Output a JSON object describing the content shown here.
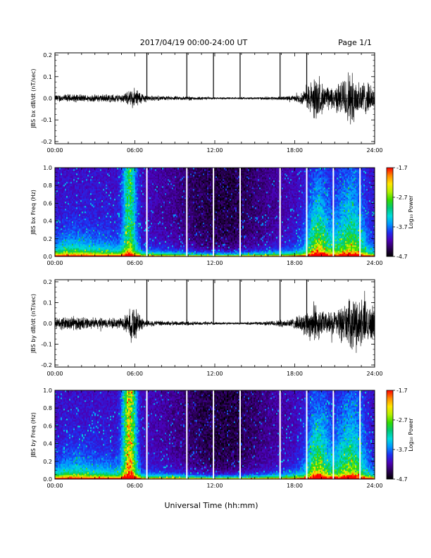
{
  "header": {
    "title": "2017/04/19  00:00-24:00 UT",
    "page": "Page 1/1"
  },
  "footer": {
    "xlabel": "Universal Time (hh:mm)"
  },
  "colors": {
    "trace": "#000000",
    "gap": "#ffffff",
    "colormap": [
      "#000000",
      "#2a0055",
      "#4b00b4",
      "#1e2ef0",
      "#0096ff",
      "#00dcdc",
      "#00c878",
      "#32dc00",
      "#b4f000",
      "#ffe600",
      "#ff8c00",
      "#ff0000"
    ]
  },
  "chart_data": [
    {
      "type": "line",
      "ylabel": "JBS bx dB/dt (nT/sec)",
      "x_ticks": [
        "00:00",
        "06:00",
        "12:00",
        "18:00",
        "24:00"
      ],
      "xlim_hours": [
        0,
        24
      ],
      "ylim": [
        -0.21,
        0.21
      ],
      "y_ticks": [
        -0.2,
        -0.1,
        0.0,
        0.1,
        0.2
      ],
      "y_tick_labels": [
        "-0.2",
        "-0.1",
        "0.0",
        "0.1",
        "0.2"
      ],
      "spikes_hours": [
        6.9,
        9.9,
        11.9,
        13.9,
        16.9,
        18.9
      ],
      "envelope": {
        "hours": [
          0,
          1,
          2,
          3,
          4,
          5,
          5.5,
          6.0,
          6.5,
          7,
          8,
          9,
          10,
          11,
          12,
          13,
          14,
          15,
          16,
          17,
          18,
          18.5,
          19,
          19.5,
          20,
          20.5,
          21,
          21.5,
          22,
          22.5,
          23,
          23.5,
          24
        ],
        "amplitude": [
          0.02,
          0.022,
          0.02,
          0.02,
          0.022,
          0.022,
          0.035,
          0.06,
          0.03,
          0.015,
          0.012,
          0.01,
          0.012,
          0.008,
          0.006,
          0.005,
          0.005,
          0.006,
          0.008,
          0.01,
          0.015,
          0.03,
          0.07,
          0.12,
          0.08,
          0.06,
          0.07,
          0.09,
          0.15,
          0.12,
          0.1,
          0.08,
          0.05
        ]
      }
    },
    {
      "type": "heatmap",
      "ylabel": "JBS bx Freq (Hz)",
      "x_ticks": [
        "00:00",
        "06:00",
        "12:00",
        "18:00",
        "24:00"
      ],
      "xlim_hours": [
        0,
        24
      ],
      "ylim": [
        0,
        1.0
      ],
      "y_ticks": [
        0.0,
        0.2,
        0.4,
        0.6,
        0.8,
        1.0
      ],
      "y_tick_labels": [
        "0.0",
        "0.2",
        "0.4",
        "0.6",
        "0.8",
        "1.0"
      ],
      "gaps_hours": [
        6.9,
        9.9,
        11.9,
        13.9,
        16.9,
        18.9,
        20.9,
        22.9
      ],
      "colorbar": {
        "label": "Log₁₀ Power",
        "min": -4.7,
        "max": -1.7,
        "tick_labels": [
          "-1.7",
          "-2.7",
          "-3.7",
          "-4.7"
        ]
      }
    },
    {
      "type": "line",
      "ylabel": "JBS by dB/dt (nT/sec)",
      "x_ticks": [
        "00:00",
        "06:00",
        "12:00",
        "18:00",
        "24:00"
      ],
      "xlim_hours": [
        0,
        24
      ],
      "ylim": [
        -0.21,
        0.21
      ],
      "y_ticks": [
        -0.2,
        -0.1,
        0.0,
        0.1,
        0.2
      ],
      "y_tick_labels": [
        "-0.2",
        "-0.1",
        "0.0",
        "0.1",
        "0.2"
      ],
      "spikes_hours": [
        6.9,
        9.9,
        11.9,
        13.9,
        16.9,
        18.9
      ],
      "envelope": {
        "hours": [
          0,
          1,
          2,
          3,
          4,
          5,
          5.5,
          5.8,
          6.0,
          6.3,
          6.8,
          7.5,
          8,
          9,
          10,
          11,
          12,
          13,
          14,
          15,
          16,
          17,
          18,
          18.5,
          19,
          19.5,
          20,
          20.5,
          21,
          21.5,
          22,
          22.5,
          23,
          23.5,
          24
        ],
        "amplitude": [
          0.03,
          0.04,
          0.035,
          0.03,
          0.03,
          0.03,
          0.06,
          0.12,
          0.1,
          0.05,
          0.02,
          0.015,
          0.015,
          0.012,
          0.012,
          0.01,
          0.008,
          0.006,
          0.006,
          0.008,
          0.012,
          0.02,
          0.03,
          0.05,
          0.08,
          0.12,
          0.07,
          0.06,
          0.07,
          0.1,
          0.12,
          0.15,
          0.14,
          0.12,
          0.08
        ]
      }
    },
    {
      "type": "heatmap",
      "ylabel": "JBS by Freq (Hz)",
      "x_ticks": [
        "00:00",
        "06:00",
        "12:00",
        "18:00",
        "24:00"
      ],
      "xlim_hours": [
        0,
        24
      ],
      "ylim": [
        0,
        1.0
      ],
      "y_ticks": [
        0.0,
        0.2,
        0.4,
        0.6,
        0.8,
        1.0
      ],
      "y_tick_labels": [
        "0.0",
        "0.2",
        "0.4",
        "0.6",
        "0.8",
        "1.0"
      ],
      "gaps_hours": [
        6.9,
        9.9,
        11.9,
        13.9,
        16.9,
        18.9,
        20.9,
        22.9
      ],
      "colorbar": {
        "label": "Log₁₀ Power",
        "min": -4.7,
        "max": -1.7,
        "tick_labels": [
          "-1.7",
          "-2.7",
          "-3.7",
          "-4.7"
        ]
      }
    }
  ]
}
